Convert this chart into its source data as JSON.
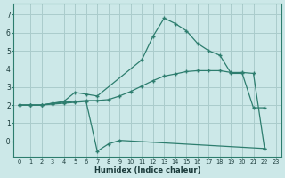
{
  "bg_color": "#cce8e8",
  "grid_color": "#aacccc",
  "line_color": "#2d7d6e",
  "xlim": [
    -0.5,
    23.5
  ],
  "ylim": [
    -0.85,
    7.6
  ],
  "xlabel": "Humidex (Indice chaleur)",
  "xticks": [
    0,
    1,
    2,
    3,
    4,
    5,
    6,
    7,
    8,
    9,
    10,
    11,
    12,
    13,
    14,
    15,
    16,
    17,
    18,
    19,
    20,
    21,
    22,
    23
  ],
  "yticks": [
    0,
    1,
    2,
    3,
    4,
    5,
    6,
    7
  ],
  "ytick_labels": [
    "-0",
    "1",
    "2",
    "3",
    "4",
    "5",
    "6",
    "7"
  ],
  "line1_x": [
    0,
    1,
    2,
    3,
    4,
    5,
    6,
    7,
    11,
    12,
    13,
    14,
    15,
    16,
    17,
    18,
    19,
    20,
    21,
    22
  ],
  "line1_y": [
    2.0,
    2.0,
    2.0,
    2.1,
    2.2,
    2.7,
    2.6,
    2.5,
    4.5,
    5.8,
    6.8,
    6.5,
    6.1,
    5.4,
    5.0,
    4.75,
    3.75,
    3.75,
    1.85,
    1.85
  ],
  "line2_x": [
    0,
    1,
    2,
    3,
    4,
    5,
    6,
    7,
    8,
    9,
    10,
    11,
    12,
    13,
    14,
    15,
    16,
    17,
    18,
    19,
    20,
    21,
    22
  ],
  "line2_y": [
    2.0,
    2.0,
    2.0,
    2.1,
    2.15,
    2.2,
    2.25,
    2.25,
    2.3,
    2.5,
    2.75,
    3.05,
    3.35,
    3.6,
    3.72,
    3.85,
    3.9,
    3.9,
    3.9,
    3.8,
    3.8,
    3.75,
    -0.4
  ],
  "line3_x": [
    0,
    1,
    2,
    3,
    4,
    5,
    6,
    7,
    8,
    9,
    22
  ],
  "line3_y": [
    2.0,
    2.0,
    2.0,
    2.05,
    2.1,
    2.15,
    2.2,
    -0.55,
    -0.15,
    0.05,
    -0.4
  ]
}
